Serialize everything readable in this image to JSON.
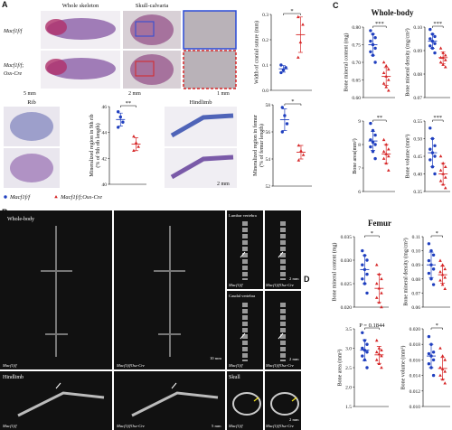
{
  "legend": [
    {
      "name": "Macf1f/f",
      "color": "#1f3fbf",
      "marker": "circle"
    },
    {
      "name": "Macf1f/f;Osx-Cre",
      "color": "#d62728",
      "marker": "triangle"
    }
  ],
  "panel_a": {
    "letter": "A",
    "whole_skeleton": "Whole skeleton",
    "skull_calvaria": "Skull-calvaria",
    "genotype_top": "Macf1f/f",
    "genotype_bottom": [
      "Macf1f/f;",
      "Osx-Cre"
    ],
    "scale_bars": [
      "5 mm",
      "2 mm",
      "1 mm",
      "2 mm"
    ],
    "rib": "Rib",
    "hindlimb": "Hindlimb",
    "charts": [
      {
        "ylabel": [
          "Width of cranial suture (mm)"
        ],
        "ylim": [
          0,
          0.3
        ],
        "yticks": [
          {
            "value": 0,
            "label": "0.0"
          },
          0.1,
          0.2,
          0.3
        ],
        "significance": "*",
        "groups": [
          {
            "values": [
              0.07,
              0.08,
              0.09,
              0.1
            ],
            "mean": 0.085,
            "sd": 0.013
          },
          {
            "values": [
              0.13,
              0.19,
              0.26,
              0.29
            ],
            "mean": 0.22,
            "sd": 0.07
          }
        ]
      },
      {
        "ylabel": [
          "Mineralized region in 9th rib",
          "(% of 9th rib length)"
        ],
        "ylim": [
          40,
          46
        ],
        "yticks": [
          40,
          42,
          44,
          46
        ],
        "significance": "**",
        "groups": [
          {
            "values": [
              45.6,
              45.2,
              44.8,
              44.4
            ],
            "mean": 45,
            "sd": 0.5
          },
          {
            "values": [
              43.7,
              43.2,
              42.9,
              42.6
            ],
            "mean": 43.1,
            "sd": 0.5
          }
        ]
      },
      {
        "ylabel": [
          "Mineralized region in femur",
          "(% of femur length)"
        ],
        "ylim": [
          52,
          58
        ],
        "yticks": [
          52,
          54,
          56,
          58
        ],
        "significance": "*",
        "groups": [
          {
            "values": [
              57.8,
              57.2,
              56.6,
              56.0
            ],
            "mean": 56.9,
            "sd": 0.8
          },
          {
            "values": [
              55.0,
              54.6,
              54.3,
              53.9
            ],
            "mean": 54.5,
            "sd": 0.5
          }
        ]
      }
    ]
  },
  "panel_b": {
    "letter": "B",
    "whole_body": {
      "title": "Whole-body",
      "genotypes": [
        "Macf1f/f",
        "Macf1f/fOsx-Cre"
      ],
      "scale": "10 mm"
    },
    "lumbar": {
      "title": "Lumbar vertebra",
      "genotypes": [
        "Macf1f/f",
        "Macf1f/fOsx-Cre"
      ],
      "scale": "2 mm"
    },
    "caudal": {
      "title": "Caudal vertebra",
      "genotypes": [
        "Macf1f/f",
        "Macf1f/fOsx-Cre"
      ],
      "scale": "2 mm"
    },
    "hindlimb": {
      "title": "Hindlimb",
      "genotypes": [
        "Macf1f/f",
        "Macf1f/fOsx-Cre"
      ],
      "scale": "5 mm"
    },
    "skull": {
      "title": "Skull",
      "genotypes": [
        "Macf1f/f",
        "Macf1f/fOsx-Cre"
      ],
      "scale": "2 mm"
    }
  },
  "panel_c": {
    "letter": "C",
    "title": "Whole-body",
    "charts": [
      {
        "ylabel": [
          "Bone mineral content (mg)"
        ],
        "ylim": [
          0.6,
          0.8
        ],
        "yticks": [
          {
            "value": 0.6,
            "label": "0.60"
          },
          0.65,
          {
            "value": 0.7,
            "label": "0.70"
          },
          0.75,
          {
            "value": 0.8,
            "label": "0.80"
          }
        ],
        "significance": "***",
        "groups": [
          {
            "values": [
              0.79,
              0.78,
              0.77,
              0.76,
              0.75,
              0.74,
              0.73,
              0.72,
              0.7
            ],
            "mean": 0.75,
            "sd": 0.03
          },
          {
            "values": [
              0.7,
              0.69,
              0.68,
              0.67,
              0.66,
              0.65,
              0.64,
              0.63,
              0.62
            ],
            "mean": 0.66,
            "sd": 0.025
          }
        ]
      },
      {
        "ylabel": [
          "Bone mineral density (mg/cm²)"
        ],
        "ylim": [
          0.07,
          0.1
        ],
        "yticks": [
          0.07,
          0.08,
          0.09,
          {
            "value": 0.1,
            "label": "0.10"
          }
        ],
        "significance": "***",
        "groups": [
          {
            "values": [
              0.099,
              0.097,
              0.096,
              0.095,
              0.094,
              0.093,
              0.092,
              0.091,
              0.089
            ],
            "mean": 0.094,
            "sd": 0.003
          },
          {
            "values": [
              0.091,
              0.089,
              0.088,
              0.087,
              0.087,
              0.086,
              0.085,
              0.084,
              0.083
            ],
            "mean": 0.087,
            "sd": 0.0025
          }
        ]
      },
      {
        "ylabel": [
          "Bone area(mm²)"
        ],
        "ylim": [
          6,
          9
        ],
        "yticks": [
          6,
          7,
          8,
          9
        ],
        "significance": "**",
        "groups": [
          {
            "values": [
              8.9,
              8.6,
              8.4,
              8.2,
              8.1,
              8.0,
              7.9,
              7.7,
              7.4
            ],
            "mean": 8.15,
            "sd": 0.4
          },
          {
            "values": [
              8.2,
              8.0,
              7.8,
              7.7,
              7.6,
              7.5,
              7.4,
              7.2,
              6.9
            ],
            "mean": 7.6,
            "sd": 0.4
          }
        ]
      },
      {
        "ylabel": [
          "Bone volume (mm³)"
        ],
        "ylim": [
          0.35,
          0.55
        ],
        "yticks": [
          0.35,
          {
            "value": 0.4,
            "label": "0.40"
          },
          0.45,
          {
            "value": 0.5,
            "label": "0.50"
          },
          0.55
        ],
        "significance": "***",
        "groups": [
          {
            "values": [
              0.53,
              0.5,
              0.48,
              0.47,
              0.46,
              0.45,
              0.44,
              0.42,
              0.4
            ],
            "mean": 0.46,
            "sd": 0.04
          },
          {
            "values": [
              0.45,
              0.43,
              0.42,
              0.41,
              0.4,
              0.39,
              0.38,
              0.37,
              0.36
            ],
            "mean": 0.4,
            "sd": 0.03
          }
        ]
      }
    ]
  },
  "panel_d": {
    "letter": "D",
    "title": "Femur",
    "charts": [
      {
        "ylabel": [
          "Bone mineral content (mg)"
        ],
        "ylim": [
          0.02,
          0.035
        ],
        "yticks": [
          {
            "value": 0.02,
            "label": "0.020"
          },
          0.025,
          {
            "value": 0.03,
            "label": "0.030"
          },
          0.035
        ],
        "significance": "*",
        "groups": [
          {
            "values": [
              0.032,
              0.031,
              0.03,
              0.029,
              0.028,
              0.027,
              0.026,
              0.025,
              0.023
            ],
            "mean": 0.028,
            "sd": 0.003
          },
          {
            "values": [
              0.029,
              0.027,
              0.026,
              0.025,
              0.024,
              0.023,
              0.022,
              0.021,
              0.02
            ],
            "mean": 0.024,
            "sd": 0.003
          }
        ]
      },
      {
        "ylabel": [
          "Bone mineral density (mg/cm²)"
        ],
        "ylim": [
          0.06,
          0.11
        ],
        "yticks": [
          0.06,
          0.07,
          0.08,
          0.09,
          {
            "value": 0.1,
            "label": "0.10"
          },
          0.11
        ],
        "significance": "*",
        "groups": [
          {
            "values": [
              0.105,
              0.1,
              0.097,
              0.093,
              0.09,
              0.087,
              0.084,
              0.08,
              0.076
            ],
            "mean": 0.09,
            "sd": 0.009
          },
          {
            "values": [
              0.093,
              0.09,
              0.087,
              0.085,
              0.083,
              0.081,
              0.079,
              0.076,
              0.073
            ],
            "mean": 0.083,
            "sd": 0.006
          }
        ]
      },
      {
        "ylabel": [
          "Bone area (mm²)"
        ],
        "ylim": [
          1.5,
          3.5
        ],
        "yticks": [
          1.5,
          {
            "value": 2,
            "label": "2.0"
          },
          2.5,
          {
            "value": 3,
            "label": "3.0"
          },
          3.5
        ],
        "significance": "P = 0.1844",
        "groups": [
          {
            "values": [
              3.4,
              3.2,
              3.1,
              3.0,
              2.95,
              2.9,
              2.8,
              2.7,
              2.5
            ],
            "mean": 2.95,
            "sd": 0.27
          },
          {
            "values": [
              3.2,
              3.0,
              2.95,
              2.9,
              2.85,
              2.8,
              2.7,
              2.6,
              2.5
            ],
            "mean": 2.83,
            "sd": 0.22
          }
        ]
      },
      {
        "ylabel": [
          "Bone volume (mm³)"
        ],
        "ylim": [
          0.01,
          0.02
        ],
        "yticks": [
          {
            "value": 0.01,
            "label": "0.010"
          },
          0.012,
          0.014,
          0.016,
          0.018,
          {
            "value": 0.02,
            "label": "0.020"
          }
        ],
        "significance": "*",
        "groups": [
          {
            "values": [
              0.019,
              0.018,
              0.017,
              0.0168,
              0.0165,
              0.016,
              0.0155,
              0.015,
              0.014
            ],
            "mean": 0.0165,
            "sd": 0.0015
          },
          {
            "values": [
              0.0175,
              0.0165,
              0.016,
              0.015,
              0.0148,
              0.0145,
              0.014,
              0.0135,
              0.013
            ],
            "mean": 0.0149,
            "sd": 0.0014
          }
        ]
      }
    ]
  }
}
